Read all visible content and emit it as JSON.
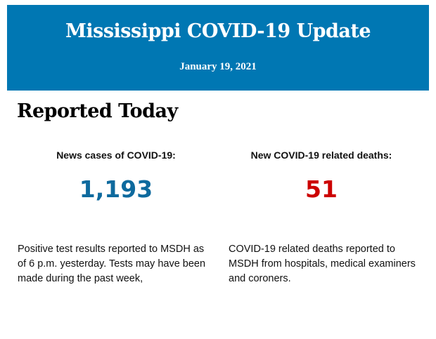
{
  "header": {
    "title": "Mississippi COVID-19 Update",
    "date": "January 19, 2021",
    "background_color": "#0077b3"
  },
  "section": {
    "heading": "Reported Today"
  },
  "stats": [
    {
      "label": "News cases of COVID-19:",
      "value": "1,193",
      "color": "#0e6a9e",
      "description": "Positive test results reported to MSDH as of 6 p.m. yesterday. Tests may have been made during the past week,"
    },
    {
      "label": "New COVID-19 related deaths:",
      "value": "51",
      "color": "#cc0000",
      "description": "COVID-19 related deaths reported to MSDH from hospitals, medical examiners and coroners."
    }
  ]
}
